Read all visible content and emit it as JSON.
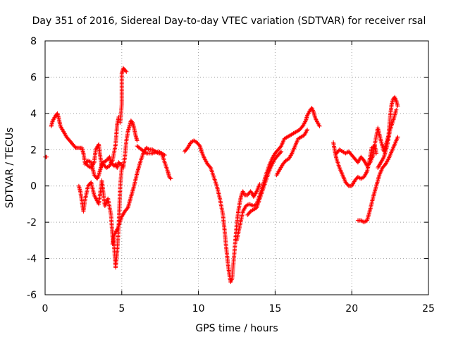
{
  "chart_data": {
    "type": "scatter",
    "title": "Day 351 of 2016, Sidereal Day-to-day VTEC variation (SDTVAR) for receiver rsal",
    "xlabel": "GPS time / hours",
    "ylabel": "SDTVAR / TECUs",
    "xlim": [
      0,
      25
    ],
    "ylim": [
      -6,
      8
    ],
    "xticks": [
      "0",
      "5",
      "10",
      "15",
      "20",
      "25"
    ],
    "yticks": [
      "-6",
      "-4",
      "-2",
      "0",
      "2",
      "4",
      "6",
      "8"
    ],
    "grid": true,
    "marker": "plus",
    "marker_color": "#ff0000",
    "series": [
      {
        "name": "",
        "tracks": [
          [
            [
              0.0,
              1.6
            ],
            [
              0.1,
              1.6
            ]
          ],
          [
            [
              0.4,
              3.3
            ],
            [
              0.5,
              3.6
            ],
            [
              0.7,
              3.9
            ],
            [
              0.8,
              4.0
            ],
            [
              0.9,
              3.7
            ],
            [
              1.0,
              3.3
            ],
            [
              1.2,
              3.0
            ],
            [
              1.4,
              2.7
            ],
            [
              1.6,
              2.5
            ],
            [
              1.8,
              2.3
            ],
            [
              2.0,
              2.1
            ],
            [
              2.2,
              2.1
            ],
            [
              2.4,
              2.1
            ],
            [
              2.5,
              1.8
            ],
            [
              2.6,
              1.3
            ],
            [
              2.8,
              1.1
            ],
            [
              3.0,
              1.0
            ],
            [
              3.2,
              1.3
            ],
            [
              3.3,
              2.0
            ],
            [
              3.5,
              2.3
            ],
            [
              3.6,
              1.6
            ],
            [
              3.7,
              1.1
            ],
            [
              3.8,
              1.2
            ],
            [
              4.0,
              1.0
            ],
            [
              4.2,
              1.1
            ],
            [
              4.4,
              1.4
            ],
            [
              4.6,
              2.3
            ],
            [
              4.7,
              3.4
            ],
            [
              4.8,
              3.8
            ]
          ],
          [
            [
              2.2,
              0.0
            ],
            [
              2.3,
              -0.3
            ],
            [
              2.5,
              -1.4
            ],
            [
              2.6,
              -0.8
            ],
            [
              2.8,
              0.0
            ],
            [
              3.0,
              0.2
            ],
            [
              3.2,
              -0.5
            ],
            [
              3.5,
              -1.0
            ],
            [
              3.7,
              0.3
            ],
            [
              3.9,
              -1.1
            ],
            [
              4.1,
              -0.7
            ],
            [
              4.3,
              -1.6
            ],
            [
              4.4,
              -2.8
            ],
            [
              4.5,
              -3.3
            ],
            [
              4.6,
              -4.5
            ],
            [
              4.7,
              -3.6
            ],
            [
              4.8,
              -2.2
            ],
            [
              4.9,
              0.0
            ],
            [
              5.0,
              1.0
            ]
          ],
          [
            [
              2.6,
              1.2
            ],
            [
              2.8,
              1.4
            ],
            [
              3.0,
              1.3
            ],
            [
              3.1,
              1.0
            ],
            [
              3.2,
              0.6
            ],
            [
              3.4,
              0.4
            ],
            [
              3.5,
              0.6
            ],
            [
              3.6,
              0.9
            ],
            [
              3.7,
              1.2
            ],
            [
              3.8,
              1.3
            ],
            [
              4.0,
              1.4
            ],
            [
              4.2,
              1.6
            ],
            [
              4.3,
              1.3
            ],
            [
              4.5,
              1.1
            ],
            [
              4.6,
              1.2
            ],
            [
              4.7,
              1.0
            ],
            [
              4.8,
              1.3
            ],
            [
              4.9,
              1.2
            ],
            [
              5.0,
              1.2
            ],
            [
              5.1,
              1.0
            ],
            [
              5.2,
              1.6
            ],
            [
              5.3,
              2.5
            ],
            [
              5.4,
              3.0
            ],
            [
              5.5,
              3.3
            ],
            [
              5.6,
              3.6
            ],
            [
              5.7,
              3.5
            ],
            [
              5.8,
              3.2
            ],
            [
              5.9,
              2.8
            ],
            [
              6.0,
              2.5
            ]
          ],
          [
            [
              4.9,
              3.5
            ],
            [
              5.0,
              4.5
            ],
            [
              5.0,
              5.5
            ],
            [
              5.0,
              6.2
            ],
            [
              5.1,
              6.5
            ],
            [
              5.2,
              6.4
            ],
            [
              5.3,
              6.3
            ]
          ],
          [
            [
              4.4,
              -3.2
            ],
            [
              4.5,
              -2.7
            ],
            [
              4.7,
              -2.4
            ],
            [
              4.8,
              -2.2
            ],
            [
              5.0,
              -1.7
            ],
            [
              5.2,
              -1.4
            ],
            [
              5.4,
              -1.2
            ],
            [
              5.6,
              -0.6
            ],
            [
              5.8,
              0.0
            ],
            [
              6.0,
              0.7
            ],
            [
              6.2,
              1.3
            ],
            [
              6.4,
              1.8
            ],
            [
              6.6,
              2.1
            ],
            [
              6.8,
              2.0
            ],
            [
              7.0,
              2.0
            ],
            [
              7.2,
              1.9
            ],
            [
              7.4,
              1.8
            ],
            [
              7.6,
              1.8
            ],
            [
              7.8,
              1.3
            ],
            [
              8.0,
              0.8
            ],
            [
              8.1,
              0.5
            ],
            [
              8.2,
              0.4
            ]
          ],
          [
            [
              6.0,
              2.2
            ],
            [
              6.3,
              2.0
            ],
            [
              6.6,
              1.8
            ],
            [
              7.0,
              1.8
            ],
            [
              7.4,
              1.9
            ],
            [
              7.8,
              1.7
            ]
          ],
          [
            [
              9.1,
              1.9
            ],
            [
              9.3,
              2.1
            ],
            [
              9.5,
              2.4
            ],
            [
              9.7,
              2.5
            ],
            [
              9.9,
              2.4
            ],
            [
              10.1,
              2.2
            ],
            [
              10.2,
              1.9
            ],
            [
              10.4,
              1.5
            ],
            [
              10.6,
              1.2
            ],
            [
              10.8,
              1.0
            ],
            [
              11.0,
              0.5
            ],
            [
              11.2,
              0.0
            ],
            [
              11.4,
              -0.7
            ],
            [
              11.6,
              -1.6
            ],
            [
              11.7,
              -2.4
            ],
            [
              11.8,
              -3.3
            ],
            [
              11.9,
              -4.1
            ],
            [
              12.0,
              -4.8
            ],
            [
              12.1,
              -5.3
            ],
            [
              12.2,
              -5.1
            ],
            [
              12.3,
              -4.1
            ],
            [
              12.4,
              -3.1
            ],
            [
              12.5,
              -2.1
            ],
            [
              12.6,
              -1.4
            ],
            [
              12.7,
              -0.9
            ],
            [
              12.8,
              -0.5
            ],
            [
              12.9,
              -0.3
            ],
            [
              13.0,
              -0.5
            ],
            [
              13.2,
              -0.5
            ],
            [
              13.4,
              -0.3
            ],
            [
              13.5,
              -0.4
            ],
            [
              13.6,
              -0.6
            ],
            [
              13.8,
              -0.3
            ],
            [
              14.0,
              0.1
            ]
          ],
          [
            [
              12.5,
              -3.0
            ],
            [
              12.7,
              -2.2
            ],
            [
              12.9,
              -1.4
            ],
            [
              13.1,
              -1.1
            ],
            [
              13.3,
              -1.0
            ],
            [
              13.6,
              -1.1
            ],
            [
              13.8,
              -1.0
            ],
            [
              14.0,
              -0.5
            ],
            [
              14.2,
              0.0
            ],
            [
              14.4,
              0.6
            ],
            [
              14.6,
              1.1
            ],
            [
              14.8,
              1.5
            ],
            [
              15.0,
              1.8
            ],
            [
              15.2,
              2.0
            ],
            [
              15.4,
              2.2
            ],
            [
              15.6,
              2.6
            ],
            [
              15.8,
              2.7
            ],
            [
              16.0,
              2.8
            ],
            [
              16.2,
              2.9
            ],
            [
              16.4,
              3.0
            ],
            [
              16.6,
              3.1
            ],
            [
              16.8,
              3.3
            ],
            [
              17.0,
              3.6
            ],
            [
              17.1,
              3.9
            ],
            [
              17.3,
              4.2
            ],
            [
              17.4,
              4.3
            ],
            [
              17.5,
              4.1
            ],
            [
              17.6,
              3.8
            ],
            [
              17.7,
              3.6
            ],
            [
              17.9,
              3.3
            ]
          ],
          [
            [
              13.2,
              -1.6
            ],
            [
              13.4,
              -1.4
            ],
            [
              13.6,
              -1.3
            ],
            [
              13.8,
              -1.2
            ],
            [
              14.0,
              -0.7
            ],
            [
              14.2,
              -0.2
            ],
            [
              14.4,
              0.3
            ],
            [
              14.6,
              0.8
            ],
            [
              14.8,
              1.2
            ],
            [
              15.0,
              1.5
            ],
            [
              15.2,
              1.7
            ],
            [
              15.4,
              1.9
            ]
          ],
          [
            [
              15.1,
              0.6
            ],
            [
              15.3,
              0.9
            ],
            [
              15.5,
              1.2
            ],
            [
              15.7,
              1.4
            ],
            [
              15.9,
              1.5
            ],
            [
              16.1,
              1.8
            ],
            [
              16.3,
              2.2
            ],
            [
              16.5,
              2.6
            ],
            [
              16.7,
              2.7
            ],
            [
              16.9,
              2.8
            ],
            [
              17.1,
              3.1
            ]
          ],
          [
            [
              18.8,
              2.4
            ],
            [
              18.9,
              1.9
            ],
            [
              19.0,
              1.5
            ],
            [
              19.2,
              1.0
            ],
            [
              19.4,
              0.6
            ],
            [
              19.6,
              0.2
            ],
            [
              19.8,
              0.0
            ],
            [
              20.0,
              0.0
            ],
            [
              20.2,
              0.3
            ],
            [
              20.4,
              0.5
            ],
            [
              20.6,
              0.4
            ],
            [
              20.8,
              0.5
            ],
            [
              21.0,
              0.8
            ],
            [
              21.2,
              1.6
            ],
            [
              21.3,
              2.1
            ],
            [
              21.5,
              2.2
            ],
            [
              21.6,
              1.8
            ]
          ],
          [
            [
              19.0,
              1.8
            ],
            [
              19.2,
              2.0
            ],
            [
              19.4,
              1.9
            ],
            [
              19.6,
              1.8
            ],
            [
              19.8,
              1.9
            ],
            [
              20.0,
              1.7
            ],
            [
              20.2,
              1.5
            ],
            [
              20.4,
              1.3
            ],
            [
              20.6,
              1.6
            ],
            [
              20.8,
              1.4
            ],
            [
              21.0,
              1.1
            ],
            [
              21.2,
              1.3
            ],
            [
              21.4,
              1.7
            ],
            [
              21.5,
              2.3
            ],
            [
              21.7,
              3.2
            ],
            [
              21.9,
              2.5
            ],
            [
              22.1,
              1.9
            ],
            [
              22.2,
              2.2
            ],
            [
              22.4,
              2.8
            ],
            [
              22.5,
              3.8
            ],
            [
              22.6,
              4.5
            ],
            [
              22.7,
              4.8
            ],
            [
              22.8,
              4.9
            ],
            [
              22.9,
              4.7
            ],
            [
              23.0,
              4.4
            ]
          ],
          [
            [
              20.4,
              -1.9
            ],
            [
              20.6,
              -1.9
            ],
            [
              20.8,
              -2.0
            ],
            [
              21.0,
              -1.9
            ],
            [
              21.2,
              -1.3
            ],
            [
              21.4,
              -0.6
            ],
            [
              21.6,
              0.0
            ],
            [
              21.8,
              0.6
            ],
            [
              22.0,
              1.0
            ],
            [
              22.2,
              1.2
            ],
            [
              22.4,
              1.5
            ],
            [
              22.6,
              1.9
            ],
            [
              22.8,
              2.3
            ],
            [
              23.0,
              2.7
            ]
          ],
          [
            [
              21.7,
              1.0
            ],
            [
              21.9,
              1.3
            ],
            [
              22.1,
              1.6
            ],
            [
              22.3,
              2.2
            ],
            [
              22.5,
              3.1
            ],
            [
              22.7,
              3.6
            ],
            [
              22.9,
              4.2
            ]
          ]
        ]
      }
    ]
  }
}
